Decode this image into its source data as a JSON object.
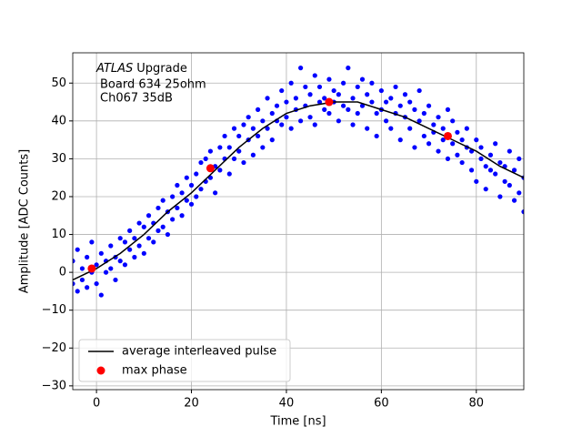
{
  "chart_data": {
    "type": "scatter",
    "xlabel": "Time [ns]",
    "ylabel": "Amplitude [ADC Counts]",
    "annotation": {
      "emphasis": "ATLAS",
      "text": "Upgrade",
      "lines": [
        "Board 634 25ohm",
        "Ch067 35dB"
      ]
    },
    "xlim": [
      -5,
      90
    ],
    "xticks": [
      0,
      20,
      40,
      60,
      80
    ],
    "ylim": [
      -31,
      58
    ],
    "yticks": [
      {
        "value": -30,
        "label": "−30"
      },
      {
        "value": -20,
        "label": "−20"
      },
      {
        "value": -10,
        "label": "−10"
      },
      0,
      10,
      20,
      30,
      40,
      50
    ],
    "grid": true,
    "legend": "lower left",
    "scatter": {
      "color": "#0000ff",
      "x": [
        -5,
        -5,
        -4,
        -4,
        -3,
        -3,
        -2,
        -2,
        -1,
        -1,
        0,
        0,
        1,
        1,
        2,
        2,
        3,
        3,
        4,
        4,
        5,
        5,
        6,
        6,
        7,
        7,
        8,
        8,
        9,
        9,
        10,
        10,
        11,
        11,
        12,
        12,
        13,
        13,
        14,
        14,
        15,
        15,
        16,
        16,
        17,
        17,
        18,
        18,
        19,
        19,
        20,
        20,
        21,
        21,
        22,
        22,
        23,
        23,
        24,
        24,
        25,
        25,
        26,
        26,
        27,
        27,
        28,
        28,
        29,
        29,
        30,
        30,
        31,
        31,
        32,
        32,
        33,
        33,
        34,
        34,
        35,
        35,
        36,
        36,
        37,
        37,
        38,
        38,
        39,
        39,
        40,
        40,
        41,
        41,
        42,
        42,
        43,
        43,
        44,
        44,
        45,
        45,
        46,
        46,
        47,
        47,
        48,
        48,
        49,
        49,
        50,
        50,
        51,
        51,
        52,
        52,
        53,
        53,
        54,
        54,
        55,
        55,
        56,
        56,
        57,
        57,
        58,
        58,
        59,
        59,
        60,
        60,
        61,
        61,
        62,
        62,
        63,
        63,
        64,
        64,
        65,
        65,
        66,
        66,
        67,
        67,
        68,
        68,
        69,
        69,
        70,
        70,
        71,
        71,
        72,
        72,
        73,
        73,
        74,
        74,
        75,
        75,
        76,
        76,
        77,
        77,
        78,
        78,
        79,
        79,
        80,
        80,
        81,
        81,
        82,
        82,
        83,
        83,
        84,
        84,
        85,
        85,
        86,
        86,
        87,
        87,
        88,
        88,
        89,
        89,
        90,
        90
      ],
      "y": [
        -3,
        3,
        6,
        -5,
        1,
        -2,
        4,
        -4,
        8,
        0,
        -3,
        2,
        5,
        -6,
        3,
        0,
        7,
        1,
        -2,
        4,
        9,
        3,
        2,
        8,
        11,
        6,
        4,
        9,
        13,
        7,
        5,
        12,
        15,
        9,
        8,
        13,
        17,
        11,
        12,
        19,
        10,
        16,
        20,
        14,
        17,
        23,
        15,
        21,
        25,
        19,
        18,
        23,
        26,
        20,
        22,
        29,
        30,
        24,
        25,
        32,
        21,
        28,
        33,
        27,
        30,
        36,
        26,
        33,
        38,
        30,
        32,
        36,
        29,
        39,
        35,
        41,
        31,
        38,
        43,
        36,
        40,
        33,
        46,
        38,
        42,
        35,
        44,
        40,
        48,
        39,
        41,
        45,
        38,
        50,
        46,
        43,
        54,
        40,
        44,
        49,
        47,
        41,
        39,
        52,
        49,
        45,
        43,
        46,
        51,
        42,
        45,
        48,
        40,
        47,
        50,
        44,
        43,
        54,
        46,
        39,
        49,
        42,
        44,
        51,
        38,
        47,
        45,
        50,
        42,
        36,
        48,
        43,
        40,
        45,
        46,
        38,
        42,
        49,
        35,
        44,
        47,
        41,
        38,
        45,
        43,
        33,
        40,
        48,
        36,
        42,
        44,
        34,
        39,
        37,
        32,
        41,
        38,
        35,
        43,
        30,
        34,
        40,
        37,
        31,
        29,
        35,
        33,
        38,
        27,
        32,
        35,
        24,
        30,
        33,
        28,
        22,
        31,
        27,
        26,
        34,
        29,
        20,
        24,
        28,
        32,
        23,
        27,
        19,
        21,
        30,
        25,
        16
      ]
    },
    "line": {
      "name": "average interleaved pulse",
      "color": "#000000",
      "x": [
        -5,
        0,
        5,
        10,
        15,
        20,
        25,
        30,
        35,
        40,
        45,
        50,
        55,
        60,
        65,
        70,
        75,
        80,
        85,
        90
      ],
      "values": [
        -2,
        1,
        5,
        10,
        16,
        21,
        27,
        33,
        38,
        42,
        44,
        45,
        45,
        43,
        41,
        38,
        35,
        32,
        28,
        25
      ]
    },
    "markers": {
      "name": "max phase",
      "color": "#ff0000",
      "x": [
        -1,
        24,
        49,
        74
      ],
      "values": [
        1,
        27.5,
        45,
        36
      ]
    }
  }
}
